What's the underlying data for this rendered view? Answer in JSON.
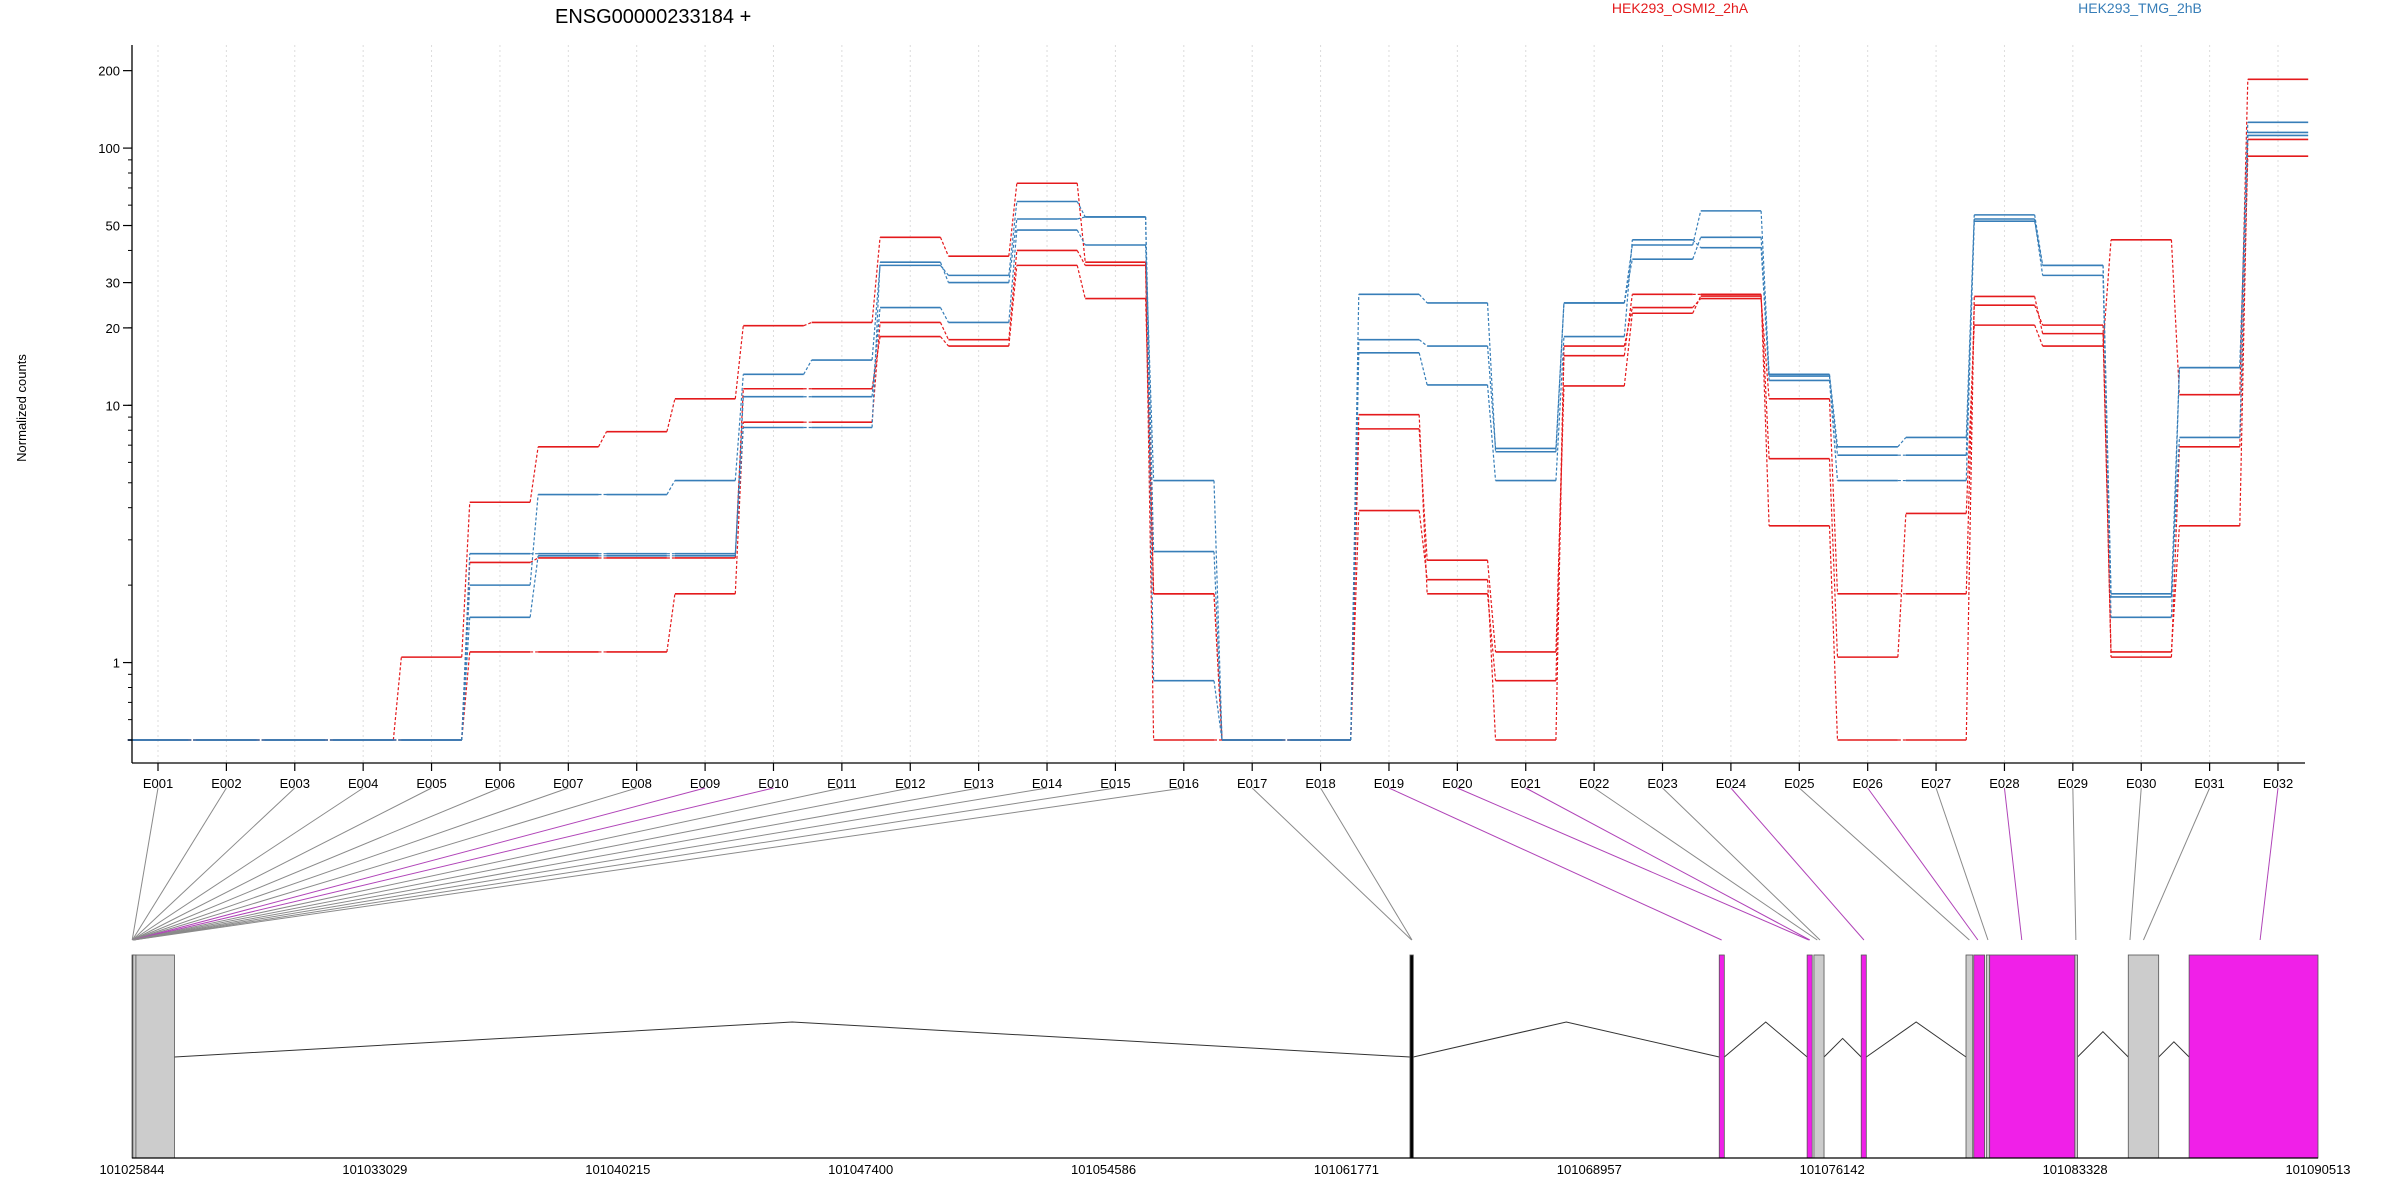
{
  "chart_data": {
    "type": "line",
    "title": "ENSG00000233184 +",
    "ylabel": "Normalized counts",
    "yscale": "log",
    "ylim": [
      0.5,
      220
    ],
    "yticks": [
      1,
      10,
      20,
      30,
      50,
      100,
      200
    ],
    "grid": "vertical",
    "legend_placement": "top",
    "exons": [
      "E001",
      "E002",
      "E003",
      "E004",
      "E005",
      "E006",
      "E007",
      "E008",
      "E009",
      "E010",
      "E011",
      "E012",
      "E013",
      "E014",
      "E015",
      "E016",
      "E017",
      "E018",
      "E019",
      "E020",
      "E021",
      "E022",
      "E023",
      "E024",
      "E025",
      "E026",
      "E027",
      "E028",
      "E029",
      "E030",
      "E031",
      "E032"
    ],
    "groups": [
      {
        "name": "HEK293_OSMI2_2hA",
        "color": "#e41a1c"
      },
      {
        "name": "HEK293_TMG_2hB",
        "color": "#377eb8"
      }
    ],
    "series": [
      {
        "group": 0,
        "values": [
          0.5,
          0.5,
          0.5,
          0.5,
          1.05,
          4.2,
          6.9,
          7.9,
          10.6,
          20.4,
          21,
          45,
          38,
          73,
          36,
          1.85,
          0.5,
          0.5,
          8.1,
          2.5,
          1.1,
          11.9,
          22.8,
          26.6,
          6.2,
          1.05,
          3.8,
          20.5,
          17,
          44,
          11,
          185
        ]
      },
      {
        "group": 0,
        "values": [
          0.5,
          0.5,
          0.5,
          0.5,
          0.5,
          2.45,
          2.55,
          2.55,
          2.55,
          11.6,
          11.6,
          18.5,
          17,
          35,
          26,
          1.85,
          0.5,
          0.5,
          3.9,
          2.1,
          0.5,
          17,
          24,
          26,
          10.6,
          1.85,
          1.85,
          24.5,
          20.5,
          1.05,
          6.9,
          93
        ]
      },
      {
        "group": 0,
        "values": [
          0.5,
          0.5,
          0.5,
          0.5,
          0.5,
          1.1,
          1.1,
          1.1,
          1.85,
          8.6,
          8.6,
          21,
          18,
          40,
          35,
          0.5,
          0.5,
          0.5,
          9.2,
          1.85,
          0.85,
          15.6,
          27,
          27,
          3.4,
          0.5,
          0.5,
          26.5,
          19,
          1.1,
          3.4,
          108
        ]
      },
      {
        "group": 1,
        "values": [
          0.5,
          0.5,
          0.5,
          0.5,
          0.5,
          1.5,
          2.6,
          2.6,
          2.6,
          10.8,
          10.8,
          24,
          21,
          48,
          42,
          5.1,
          0.5,
          0.5,
          18,
          17,
          6.8,
          25,
          37,
          45,
          13,
          6.4,
          6.4,
          52,
          35,
          1.8,
          7.5,
          112
        ]
      },
      {
        "group": 1,
        "values": [
          0.5,
          0.5,
          0.5,
          0.5,
          0.5,
          2.0,
          4.5,
          4.5,
          5.1,
          13.2,
          15,
          35,
          32,
          62,
          54,
          2.7,
          0.5,
          0.5,
          27,
          25,
          6.6,
          25,
          42,
          57,
          13.2,
          6.9,
          7.5,
          55,
          35,
          1.85,
          14,
          126
        ]
      },
      {
        "group": 1,
        "values": [
          0.5,
          0.5,
          0.5,
          0.5,
          0.5,
          2.65,
          2.65,
          2.65,
          2.65,
          8.2,
          8.2,
          36,
          30,
          53,
          54,
          0.85,
          0.5,
          0.5,
          16,
          12,
          5.1,
          18.5,
          44,
          41,
          12.5,
          5.1,
          5.1,
          53,
          32,
          1.5,
          14,
          115
        ]
      }
    ],
    "x_axis_ticks": [
      "101025844",
      "101033029",
      "101040215",
      "101047400",
      "101054586",
      "101061771",
      "101068957",
      "101076142",
      "101083328",
      "101090513"
    ],
    "gene_model": {
      "range": [
        101025844,
        101090513
      ],
      "constitutive_color": "#cccccc",
      "alternative_color": "#f020e8",
      "blocks": [
        {
          "start": 101025844,
          "end": 101025870,
          "color": "#000000"
        },
        {
          "start": 101025870,
          "end": 101025960,
          "color": "#cccccc"
        },
        {
          "start": 101025960,
          "end": 101027100,
          "color": "#cccccc"
        },
        {
          "start": 101063650,
          "end": 101063750,
          "color": "#000000"
        },
        {
          "start": 101072800,
          "end": 101072950,
          "color": "#f020e8"
        },
        {
          "start": 101075400,
          "end": 101075550,
          "color": "#f020e8"
        },
        {
          "start": 101075600,
          "end": 101075900,
          "color": "#cccccc"
        },
        {
          "start": 101077000,
          "end": 101077150,
          "color": "#f020e8"
        },
        {
          "start": 101080100,
          "end": 101080300,
          "color": "#cccccc"
        },
        {
          "start": 101080330,
          "end": 101080650,
          "color": "#f020e8"
        },
        {
          "start": 101080700,
          "end": 101080800,
          "color": "#cccccc"
        },
        {
          "start": 101080800,
          "end": 101083320,
          "color": "#f020e8"
        },
        {
          "start": 101083320,
          "end": 101083400,
          "color": "#cccccc"
        },
        {
          "start": 101084900,
          "end": 101085800,
          "color": "#cccccc"
        },
        {
          "start": 101086700,
          "end": 101090513,
          "color": "#f020e8"
        }
      ],
      "exon_links": [
        {
          "exon": "E001",
          "pos": 101025850,
          "alt": false
        },
        {
          "exon": "E002",
          "pos": 101025855,
          "alt": false
        },
        {
          "exon": "E003",
          "pos": 101025858,
          "alt": false
        },
        {
          "exon": "E004",
          "pos": 101025861,
          "alt": false
        },
        {
          "exon": "E005",
          "pos": 101025864,
          "alt": false
        },
        {
          "exon": "E006",
          "pos": 101025866,
          "alt": false
        },
        {
          "exon": "E007",
          "pos": 101025868,
          "alt": false
        },
        {
          "exon": "E008",
          "pos": 101025870,
          "alt": false
        },
        {
          "exon": "E009",
          "pos": 101025872,
          "alt": true
        },
        {
          "exon": "E010",
          "pos": 101025874,
          "alt": true
        },
        {
          "exon": "E011",
          "pos": 101025876,
          "alt": false
        },
        {
          "exon": "E012",
          "pos": 101025878,
          "alt": false
        },
        {
          "exon": "E013",
          "pos": 101025880,
          "alt": false
        },
        {
          "exon": "E014",
          "pos": 101025882,
          "alt": false
        },
        {
          "exon": "E015",
          "pos": 101025884,
          "alt": false
        },
        {
          "exon": "E016",
          "pos": 101025886,
          "alt": false
        },
        {
          "exon": "E017",
          "pos": 101063700,
          "alt": false
        },
        {
          "exon": "E018",
          "pos": 101063710,
          "alt": false
        },
        {
          "exon": "E019",
          "pos": 101072870,
          "alt": true
        },
        {
          "exon": "E020",
          "pos": 101075450,
          "alt": true
        },
        {
          "exon": "E021",
          "pos": 101075480,
          "alt": true
        },
        {
          "exon": "E022",
          "pos": 101075700,
          "alt": false
        },
        {
          "exon": "E023",
          "pos": 101075780,
          "alt": false
        },
        {
          "exon": "E024",
          "pos": 101077080,
          "alt": true
        },
        {
          "exon": "E025",
          "pos": 101080200,
          "alt": false
        },
        {
          "exon": "E026",
          "pos": 101080450,
          "alt": true
        },
        {
          "exon": "E027",
          "pos": 101080750,
          "alt": false
        },
        {
          "exon": "E028",
          "pos": 101081750,
          "alt": true
        },
        {
          "exon": "E029",
          "pos": 101083350,
          "alt": false
        },
        {
          "exon": "E030",
          "pos": 101084950,
          "alt": false
        },
        {
          "exon": "E031",
          "pos": 101085350,
          "alt": false
        },
        {
          "exon": "E032",
          "pos": 101088800,
          "alt": true
        }
      ]
    }
  }
}
